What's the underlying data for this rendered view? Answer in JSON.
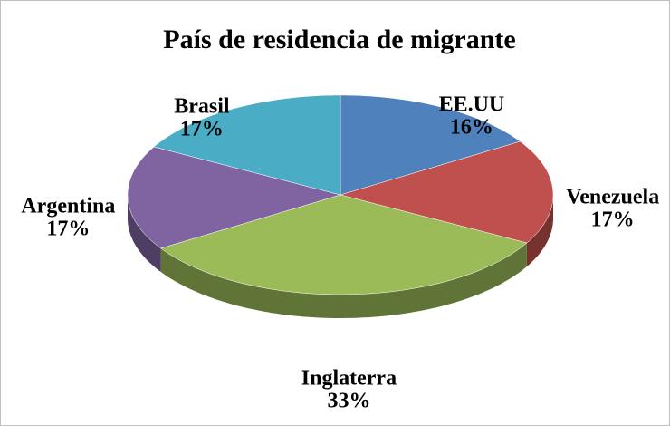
{
  "chart_data": {
    "type": "pie",
    "title": "País de residencia de migrante",
    "categories": [
      "EE.UU",
      "Venezuela",
      "Inglaterra",
      "Argentina",
      "Brasil"
    ],
    "values": [
      16,
      17,
      33,
      17,
      17
    ],
    "value_labels": [
      "16%",
      "17%",
      "33%",
      "17%",
      "17%"
    ],
    "colors": [
      "#4f81bd",
      "#c0504d",
      "#9bbb59",
      "#8064a2",
      "#4bacc6"
    ]
  }
}
